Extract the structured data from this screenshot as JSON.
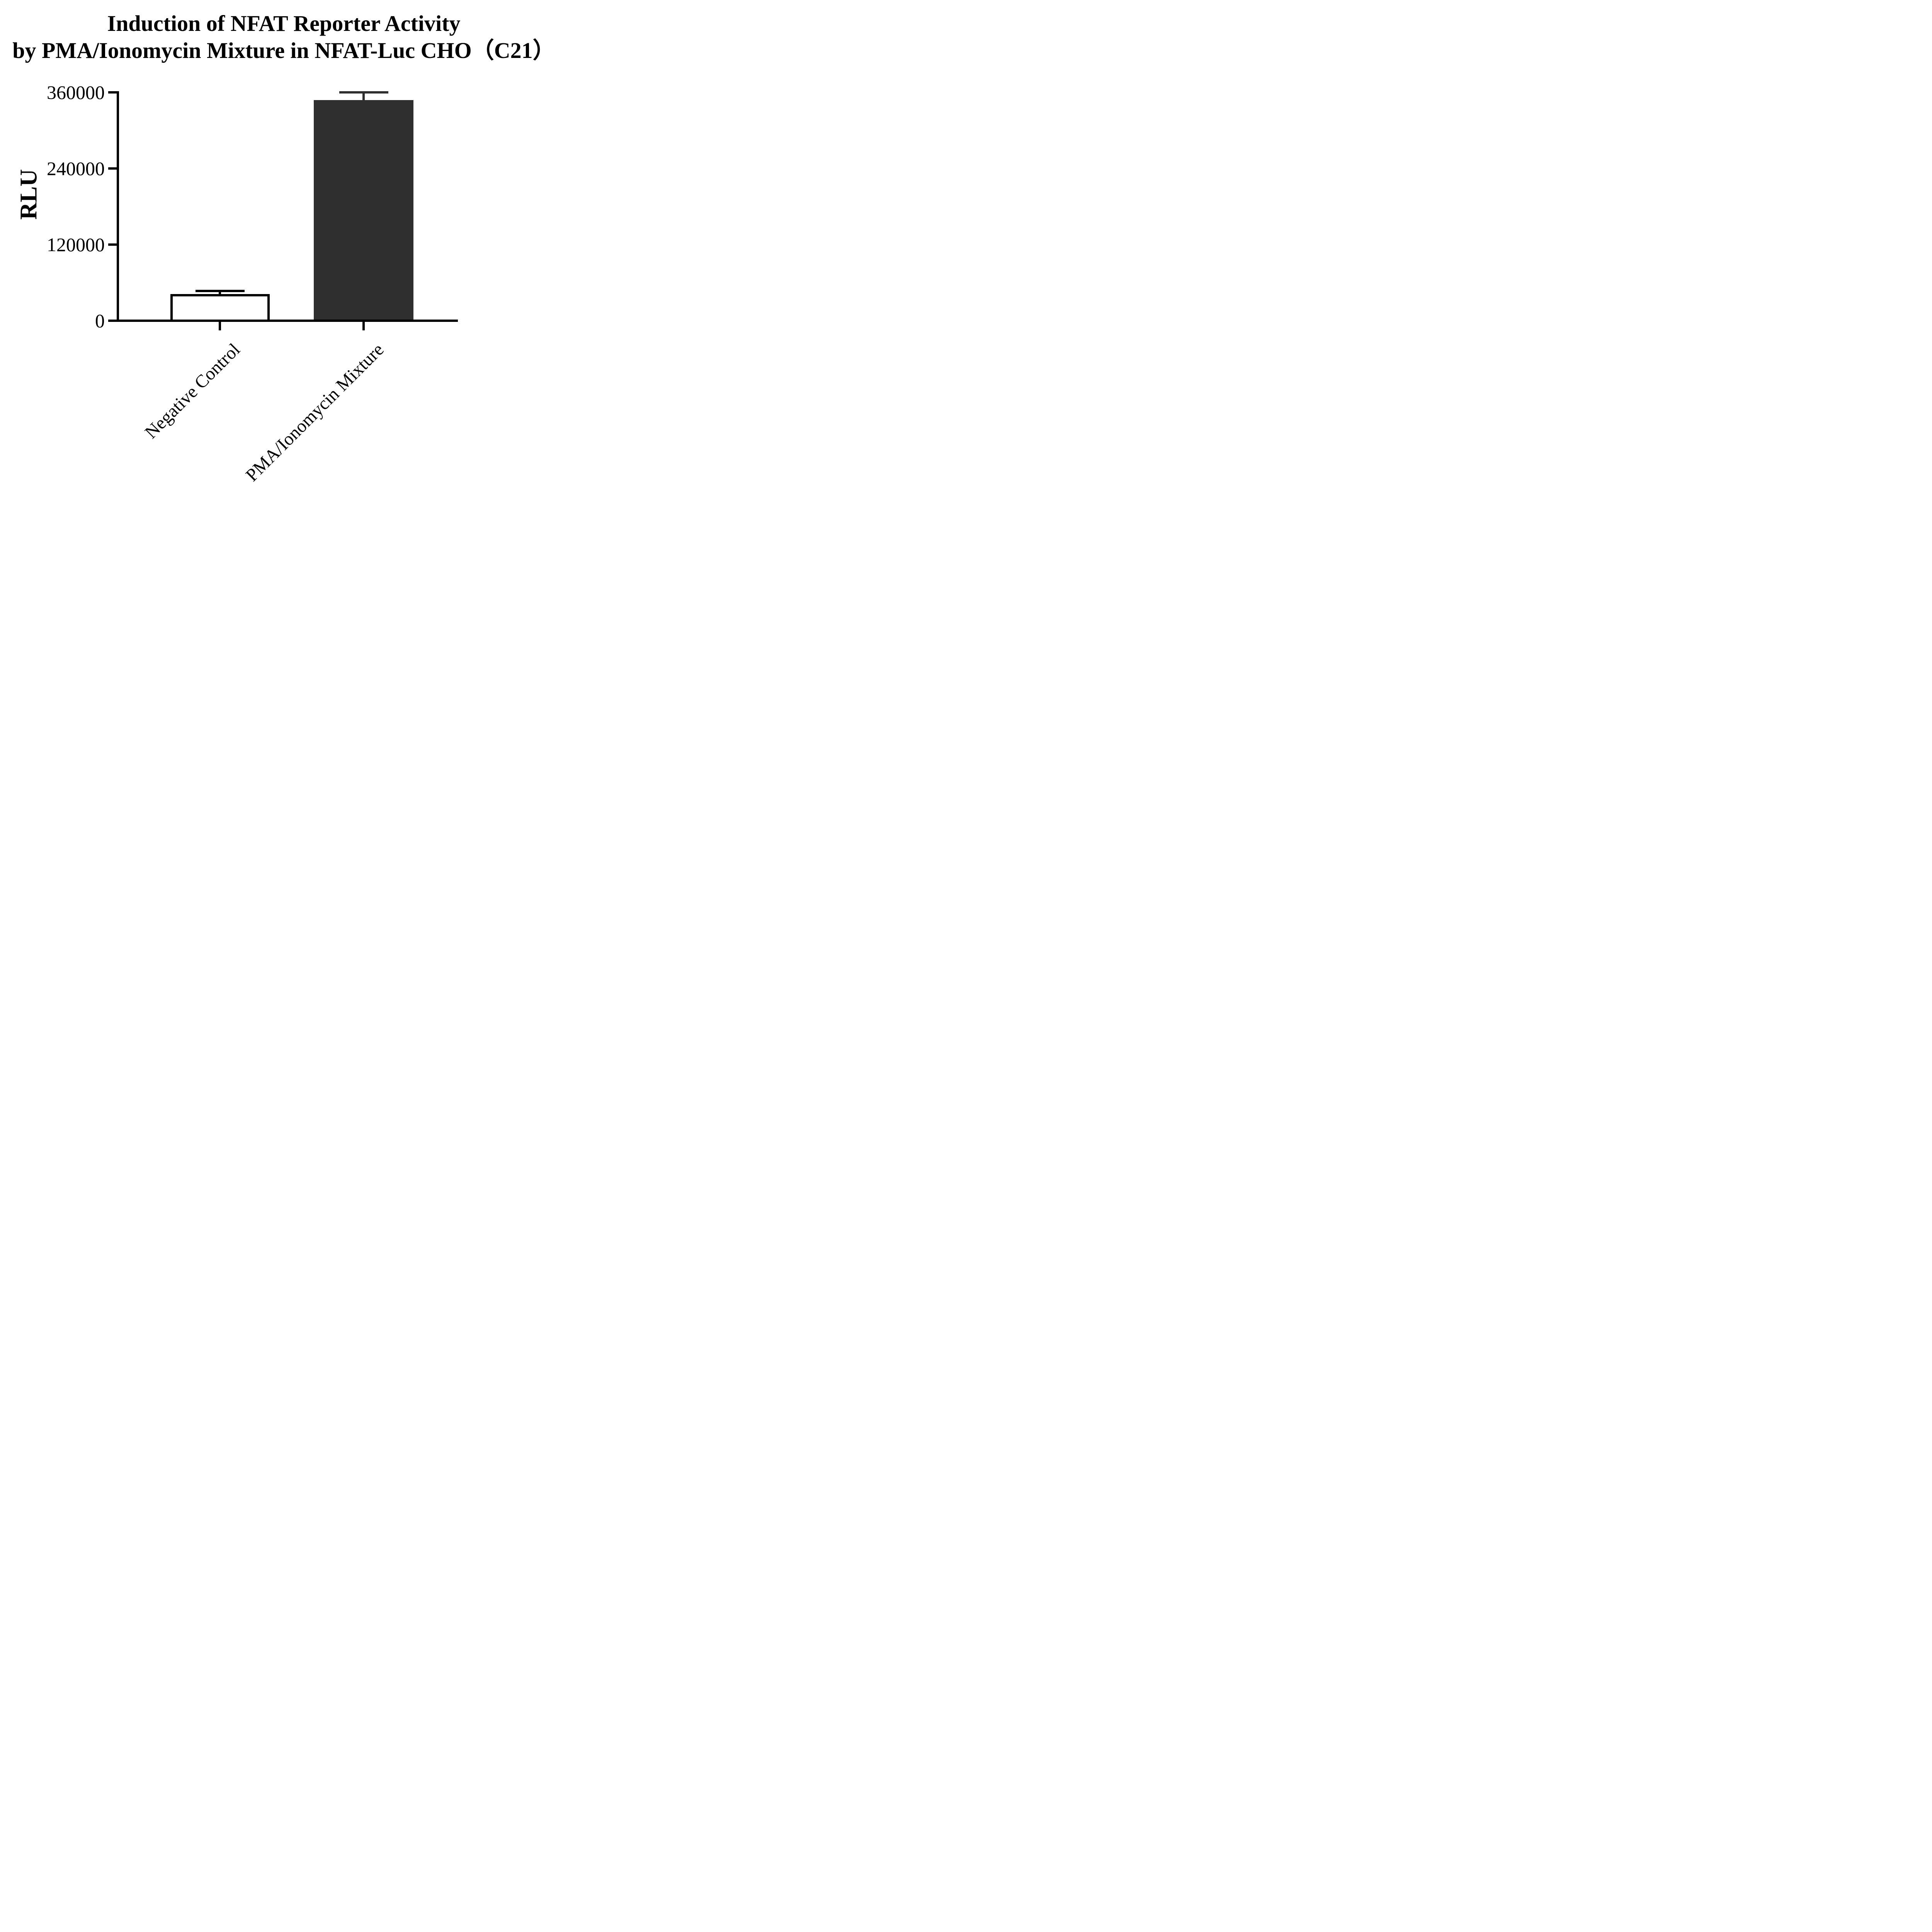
{
  "title": {
    "line1": "Induction of NFAT Reporter Activity",
    "line2": "by PMA/Ionomycin Mixture in NFAT-Luc CHO（C21）"
  },
  "chart_data": {
    "type": "bar",
    "title": "Induction of NFAT Reporter Activity by PMA/Ionomycin Mixture in NFAT-Luc CHO（C21）",
    "categories": [
      "Negative Control",
      "PMA/Ionomycin Mixture"
    ],
    "values": [
      42000,
      348000
    ],
    "error_sd": [
      5000,
      12000
    ],
    "series": [
      {
        "name": "RLU",
        "values": [
          42000,
          348000
        ]
      }
    ],
    "xlabel": "",
    "ylabel": "RLU",
    "ylim": [
      0,
      360000
    ],
    "yticks": [
      0,
      120000,
      240000,
      360000
    ],
    "ytick_labels": [
      "0",
      "120000",
      "240000",
      "360000"
    ],
    "grid": false,
    "legend_position": "none",
    "bar_fill_colors": [
      "#ffffff",
      "#2f2f2f"
    ],
    "bar_border_colors": [
      "#000000",
      "#2f2f2f"
    ],
    "error_bar_colors": [
      "#000000",
      "#2f2f2f"
    ],
    "axis_color": "#000000",
    "xtick_label_rotation_deg": 45
  }
}
